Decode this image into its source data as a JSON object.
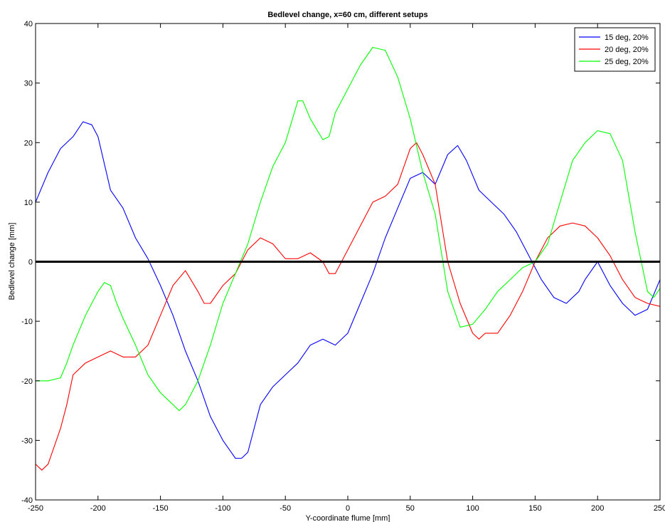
{
  "chart_data": {
    "type": "line",
    "title": "Bedlevel change, x=60 cm, different setups",
    "xlabel": "Y-coordinate flume [mm]",
    "ylabel": "Bedlevel change [mm]",
    "xlim": [
      -250,
      250
    ],
    "ylim": [
      -40,
      40
    ],
    "xticks": [
      -250,
      -200,
      -150,
      -100,
      -50,
      0,
      50,
      100,
      150,
      200,
      250
    ],
    "yticks": [
      -40,
      -30,
      -20,
      -10,
      0,
      10,
      20,
      30,
      40
    ],
    "grid": false,
    "legend_position": "top-right",
    "reference_line": {
      "y": 0,
      "color": "#000000"
    },
    "series": [
      {
        "name": "15 deg, 20%",
        "color": "#0000ff",
        "x": [
          -250,
          -240,
          -230,
          -220,
          -212,
          -205,
          -200,
          -190,
          -180,
          -170,
          -160,
          -150,
          -140,
          -130,
          -120,
          -110,
          -100,
          -90,
          -85,
          -80,
          -75,
          -70,
          -60,
          -50,
          -40,
          -30,
          -20,
          -10,
          0,
          10,
          20,
          30,
          40,
          50,
          60,
          70,
          80,
          88,
          95,
          105,
          115,
          125,
          135,
          145,
          155,
          165,
          175,
          185,
          190,
          200,
          210,
          220,
          230,
          240,
          250
        ],
        "y": [
          10,
          15,
          19,
          21,
          23.5,
          23,
          21,
          12,
          9,
          4,
          0.5,
          -4,
          -9,
          -15,
          -20,
          -26,
          -30,
          -33,
          -33,
          -32,
          -28,
          -24,
          -21,
          -19,
          -17,
          -14,
          -13,
          -14,
          -12,
          -7,
          -2,
          4,
          9,
          14,
          15,
          13,
          18,
          19.5,
          17,
          12,
          10,
          8,
          5,
          1,
          -3,
          -6,
          -7,
          -5,
          -3,
          0,
          -4,
          -7,
          -9,
          -8,
          -3
        ]
      },
      {
        "name": "20 deg, 20%",
        "color": "#ff0000",
        "x": [
          -250,
          -245,
          -240,
          -230,
          -225,
          -220,
          -210,
          -200,
          -190,
          -180,
          -170,
          -160,
          -150,
          -140,
          -130,
          -120,
          -115,
          -110,
          -100,
          -90,
          -80,
          -70,
          -60,
          -50,
          -40,
          -30,
          -20,
          -15,
          -10,
          -5,
          0,
          10,
          20,
          30,
          40,
          50,
          55,
          60,
          70,
          80,
          90,
          100,
          105,
          110,
          120,
          130,
          140,
          150,
          160,
          170,
          180,
          190,
          200,
          210,
          220,
          230,
          240,
          250
        ],
        "y": [
          -34,
          -35,
          -34,
          -28,
          -24,
          -19,
          -17,
          -16,
          -15,
          -16,
          -16,
          -14,
          -9,
          -4,
          -1.5,
          -5,
          -7,
          -7,
          -4,
          -2,
          2,
          4,
          3,
          0.5,
          0.5,
          1.5,
          0,
          -2,
          -2,
          0,
          2,
          6,
          10,
          11,
          13,
          19,
          20,
          18,
          13,
          0,
          -7,
          -12,
          -13,
          -12,
          -12,
          -9,
          -5,
          0,
          4,
          6,
          6.5,
          6,
          4,
          1,
          -3,
          -6,
          -7,
          -7.5
        ]
      },
      {
        "name": "25 deg, 20%",
        "color": "#00ff00",
        "x": [
          -250,
          -240,
          -230,
          -225,
          -220,
          -210,
          -200,
          -195,
          -190,
          -185,
          -180,
          -170,
          -160,
          -150,
          -140,
          -135,
          -130,
          -120,
          -110,
          -100,
          -90,
          -80,
          -70,
          -60,
          -50,
          -40,
          -36,
          -30,
          -20,
          -15,
          -10,
          0,
          10,
          20,
          30,
          40,
          50,
          60,
          70,
          80,
          90,
          100,
          110,
          120,
          130,
          140,
          150,
          160,
          170,
          180,
          190,
          200,
          210,
          220,
          230,
          240,
          245,
          250
        ],
        "y": [
          -20,
          -20,
          -19.5,
          -17,
          -14,
          -9,
          -5,
          -3.5,
          -4,
          -7,
          -9.5,
          -14,
          -19,
          -22,
          -24,
          -25,
          -24,
          -20,
          -14,
          -7,
          -2,
          3,
          10,
          16,
          20,
          27,
          27,
          24,
          20.5,
          21,
          25,
          29,
          33,
          36,
          35.5,
          31,
          24,
          15,
          8,
          -5,
          -11,
          -10.5,
          -8,
          -5,
          -3,
          -1,
          0,
          3,
          10,
          17,
          20,
          22,
          21.5,
          17,
          5,
          -5,
          -6,
          -4.5
        ]
      }
    ]
  }
}
